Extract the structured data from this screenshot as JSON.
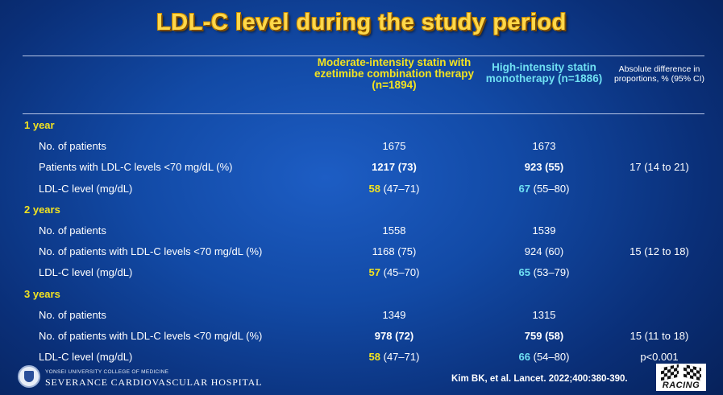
{
  "title": "LDL-C level during the study period",
  "columns": {
    "moderate": "Moderate-intensity statin with ezetimibe combination therapy (n=1894)",
    "high": "High-intensity statin monotherapy (n=1886)",
    "absolute": "Absolute difference in proportions, % (95% CI)"
  },
  "rows": [
    {
      "type": "section",
      "label": "1 year"
    },
    {
      "type": "data",
      "label": "No. of patients",
      "mod_bold": "",
      "mod_rest": "1675",
      "high_bold": "",
      "high_rest": "1673",
      "abs": ""
    },
    {
      "type": "data",
      "label": "Patients with LDL-C levels <70 mg/dL (%)",
      "mod_bold": "1217 (73)",
      "mod_rest": "",
      "high_bold": "923 (55)",
      "high_rest": "",
      "abs": "17 (14 to 21)"
    },
    {
      "type": "data",
      "label": "LDL-C level (mg/dL)",
      "mod_bold": "58",
      "mod_rest": " (47–71)",
      "high_bold": "67",
      "high_rest": " (55–80)",
      "abs": ""
    },
    {
      "type": "section",
      "label": "2 years"
    },
    {
      "type": "data",
      "label": "No. of patients",
      "mod_bold": "",
      "mod_rest": "1558",
      "high_bold": "",
      "high_rest": "1539",
      "abs": ""
    },
    {
      "type": "data",
      "label": "No. of patients with LDL-C levels <70 mg/dL (%)",
      "mod_bold": "",
      "mod_rest": "1168 (75)",
      "high_bold": "",
      "high_rest": "924 (60)",
      "abs": "15 (12 to 18)"
    },
    {
      "type": "data",
      "label": "LDL-C level (mg/dL)",
      "mod_bold": "57",
      "mod_rest": " (45–70)",
      "high_bold": "65",
      "high_rest": " (53–79)",
      "abs": ""
    },
    {
      "type": "section",
      "label": "3 years"
    },
    {
      "type": "data",
      "label": "No. of patients",
      "mod_bold": "",
      "mod_rest": "1349",
      "high_bold": "",
      "high_rest": "1315",
      "abs": ""
    },
    {
      "type": "data",
      "label": "No. of patients with LDL-C levels <70 mg/dL (%)",
      "mod_bold": "978 (72)",
      "mod_rest": "",
      "high_bold": "759 (58)",
      "high_rest": "",
      "abs": "15 (11 to 18)"
    },
    {
      "type": "data",
      "label": "LDL-C level (mg/dL)",
      "mod_bold": "58",
      "mod_rest": " (47–71)",
      "high_bold": "66",
      "high_rest": " (54–80)",
      "abs": "p<0.001"
    }
  ],
  "footer": {
    "institution_small": "YONSEI UNIVERSITY COLLEGE OF MEDICINE",
    "institution_name": "SEVERANCE CARDIOVASCULAR HOSPITAL",
    "citation": "Kim BK, et al. Lancet. 2022;400:380-390.",
    "logo_word": "RACING"
  },
  "colors": {
    "title": "#ffd84a",
    "moderate_accent": "#f3e320",
    "high_accent": "#6fe0f3",
    "background": "#124aa6"
  }
}
